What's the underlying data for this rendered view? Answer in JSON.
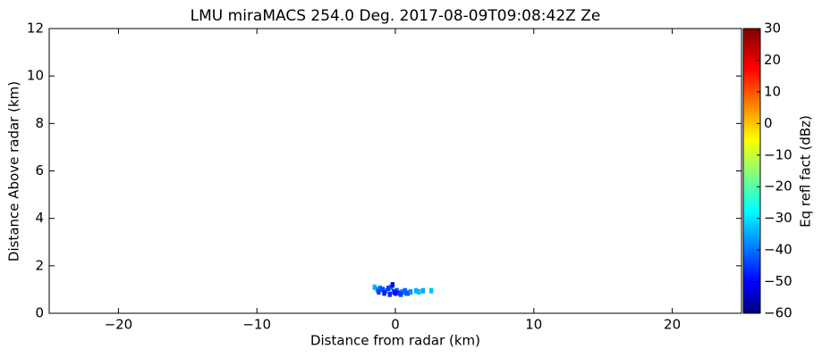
{
  "chart_data": {
    "type": "rhi",
    "title": "LMU miraMACS 254.0 Deg. 2017-08-09T09:08:42Z  Ze",
    "xlabel": "Distance from radar (km)",
    "ylabel": "Distance Above radar  (km)",
    "colorbar_label": "Eq refl fact (dBz)",
    "x": [
      -1.5,
      -1.3,
      -1.1,
      -0.9,
      -0.7,
      -0.5,
      -0.3,
      -0.1,
      0.1,
      0.3,
      0.5,
      0.7,
      0.9,
      1.1,
      -1.2,
      -0.8,
      -0.4,
      0.0,
      0.4,
      0.8,
      1.5,
      1.7,
      2.0,
      2.6,
      -0.2
    ],
    "y": [
      1.1,
      1.0,
      1.05,
      1.0,
      0.95,
      1.05,
      1.1,
      0.9,
      0.95,
      0.85,
      0.9,
      0.95,
      0.85,
      0.9,
      0.9,
      0.85,
      0.8,
      0.85,
      0.8,
      0.85,
      0.95,
      0.9,
      0.95,
      0.95,
      1.2
    ],
    "values": [
      -33,
      -36,
      -40,
      -42,
      -38,
      -44,
      -40,
      -46,
      -42,
      -45,
      -38,
      -40,
      -44,
      -36,
      -43,
      -47,
      -45,
      -48,
      -43,
      -41,
      -33,
      -32,
      -34,
      -32,
      -50
    ],
    "xlim": [
      -25,
      25
    ],
    "xticks": [
      {
        "value": -20,
        "label": "−20"
      },
      {
        "value": -10,
        "label": "−10"
      },
      0,
      10,
      20
    ],
    "ylim": [
      0,
      12
    ],
    "yticks": [
      0,
      2,
      4,
      6,
      8,
      10,
      12
    ],
    "clim": [
      -60,
      30
    ],
    "cticks": [
      {
        "value": -60,
        "label": "−60"
      },
      {
        "value": -50,
        "label": "−50"
      },
      {
        "value": -40,
        "label": "−40"
      },
      {
        "value": -30,
        "label": "−30"
      },
      {
        "value": -20,
        "label": "−20"
      },
      {
        "value": -10,
        "label": "−10"
      },
      0,
      10,
      20,
      30
    ],
    "colormap": "jet"
  }
}
